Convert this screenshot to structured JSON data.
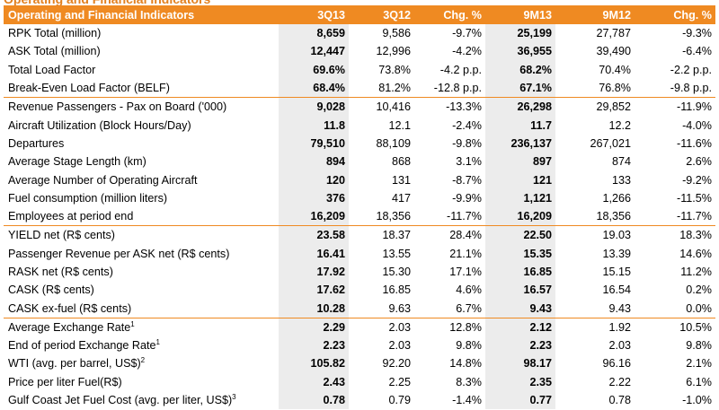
{
  "header": {
    "title": "Operating and Financial Indicators",
    "cols": [
      "3Q13",
      "3Q12",
      "Chg. %",
      "9M13",
      "9M12",
      "Chg. %"
    ]
  },
  "rows": [
    {
      "label": "RPK Total (million)",
      "sup": "",
      "v": [
        "8,659",
        "9,586",
        "-9.7%",
        "25,199",
        "27,787",
        "-9.3%"
      ],
      "gs": false
    },
    {
      "label": "ASK Total (million)",
      "sup": "",
      "v": [
        "12,447",
        "12,996",
        "-4.2%",
        "36,955",
        "39,490",
        "-6.4%"
      ],
      "gs": false
    },
    {
      "label": "Total Load Factor",
      "sup": "",
      "v": [
        "69.6%",
        "73.8%",
        "-4.2 p.p.",
        "68.2%",
        "70.4%",
        "-2.2 p.p."
      ],
      "gs": false
    },
    {
      "label": "Break-Even Load Factor (BELF)",
      "sup": "",
      "v": [
        "68.4%",
        "81.2%",
        "-12.8 p.p.",
        "67.1%",
        "76.8%",
        "-9.8 p.p."
      ],
      "gs": false
    },
    {
      "label": "Revenue Passengers - Pax on Board ('000)",
      "sup": "",
      "v": [
        "9,028",
        "10,416",
        "-13.3%",
        "26,298",
        "29,852",
        "-11.9%"
      ],
      "gs": true
    },
    {
      "label": "Aircraft Utilization (Block Hours/Day)",
      "sup": "",
      "v": [
        "11.8",
        "12.1",
        "-2.4%",
        "11.7",
        "12.2",
        "-4.0%"
      ],
      "gs": false
    },
    {
      "label": "Departures",
      "sup": "",
      "v": [
        "79,510",
        "88,109",
        "-9.8%",
        "236,137",
        "267,021",
        "-11.6%"
      ],
      "gs": false
    },
    {
      "label": "Average Stage Length (km)",
      "sup": "",
      "v": [
        "894",
        "868",
        "3.1%",
        "897",
        "874",
        "2.6%"
      ],
      "gs": false
    },
    {
      "label": "Average Number of Operating Aircraft",
      "sup": "",
      "v": [
        "120",
        "131",
        "-8.7%",
        "121",
        "133",
        "-9.2%"
      ],
      "gs": false
    },
    {
      "label": "Fuel consumption (million liters)",
      "sup": "",
      "v": [
        "376",
        "417",
        "-9.9%",
        "1,121",
        "1,266",
        "-11.5%"
      ],
      "gs": false
    },
    {
      "label": "Employees at period end",
      "sup": "",
      "v": [
        "16,209",
        "18,356",
        "-11.7%",
        "16,209",
        "18,356",
        "-11.7%"
      ],
      "gs": false
    },
    {
      "label": "YIELD net (R$ cents)",
      "sup": "",
      "v": [
        "23.58",
        "18.37",
        "28.4%",
        "22.50",
        "19.03",
        "18.3%"
      ],
      "gs": true
    },
    {
      "label": "Passenger Revenue per ASK net (R$ cents)",
      "sup": "",
      "v": [
        "16.41",
        "13.55",
        "21.1%",
        "15.35",
        "13.39",
        "14.6%"
      ],
      "gs": false
    },
    {
      "label": "RASK net (R$ cents)",
      "sup": "",
      "v": [
        "17.92",
        "15.30",
        "17.1%",
        "16.85",
        "15.15",
        "11.2%"
      ],
      "gs": false
    },
    {
      "label": "CASK (R$ cents)",
      "sup": "",
      "v": [
        "17.62",
        "16.85",
        "4.6%",
        "16.57",
        "16.54",
        "0.2%"
      ],
      "gs": false
    },
    {
      "label": "CASK ex-fuel (R$ cents)",
      "sup": "",
      "v": [
        "10.28",
        "9.63",
        "6.7%",
        "9.43",
        "9.43",
        "0.0%"
      ],
      "gs": false
    },
    {
      "label": "Average Exchange Rate",
      "sup": "1",
      "v": [
        "2.29",
        "2.03",
        "12.8%",
        "2.12",
        "1.92",
        "10.5%"
      ],
      "gs": true
    },
    {
      "label": "End of period Exchange Rate",
      "sup": "1",
      "v": [
        "2.23",
        "2.03",
        "9.8%",
        "2.23",
        "2.03",
        "9.8%"
      ],
      "gs": false
    },
    {
      "label": "WTI (avg. per barrel, US$)",
      "sup": "2",
      "v": [
        "105.82",
        "92.20",
        "14.8%",
        "98.17",
        "96.16",
        "2.1%"
      ],
      "gs": false
    },
    {
      "label": "Price per liter Fuel(R$)",
      "sup": "",
      "v": [
        "2.43",
        "2.25",
        "8.3%",
        "2.35",
        "2.22",
        "6.1%"
      ],
      "gs": false
    },
    {
      "label": "Gulf Coast Jet Fuel Cost (avg. per liter, US$)",
      "sup": "3",
      "v": [
        "0.78",
        "0.79",
        "-1.4%",
        "0.77",
        "0.78",
        "-1.0%"
      ],
      "gs": false
    }
  ]
}
